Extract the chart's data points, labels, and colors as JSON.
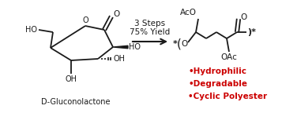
{
  "arrow_text_line1": "3 Steps",
  "arrow_text_line2": "75% Yield",
  "label_left": "D-Gluconolactone",
  "bullet_color": "#cc0000",
  "bullet_items": [
    "•Hydrophilic",
    "•Degradable",
    "•Cyclic Polyester"
  ],
  "bg_color": "#ffffff",
  "line_color": "#1a1a1a",
  "fig_width": 3.76,
  "fig_height": 1.53,
  "dpi": 100
}
